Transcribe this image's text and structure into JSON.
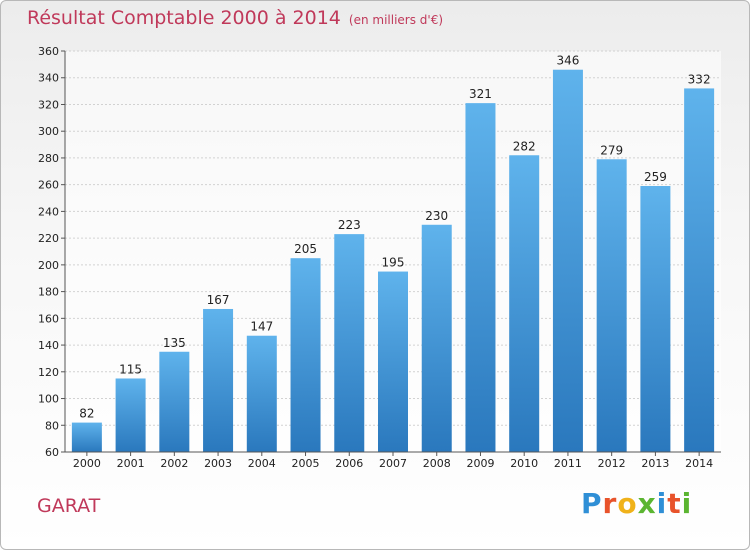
{
  "header": {
    "title": "Résultat Comptable 2000 à 2014",
    "subtitle": "(en milliers d'€)"
  },
  "footer": {
    "commune": "GARAT",
    "logo_letters": [
      "P",
      "r",
      "o",
      "x",
      "i",
      "t",
      "i"
    ],
    "logo_colors": [
      "#2f8fd6",
      "#e8532b",
      "#f0b21a",
      "#5bb531",
      "#2f8fd6",
      "#e8532b",
      "#5bb531"
    ]
  },
  "colors": {
    "bar_top": "#5fb3ec",
    "bar_bottom": "#2a78bd",
    "title": "#c0395a"
  },
  "chart_data": {
    "type": "bar",
    "title": "Résultat Comptable 2000 à 2014",
    "subtitle": "(en milliers d'€)",
    "categories": [
      "2000",
      "2001",
      "2002",
      "2003",
      "2004",
      "2005",
      "2006",
      "2007",
      "2008",
      "2009",
      "2010",
      "2011",
      "2012",
      "2013",
      "2014"
    ],
    "values": [
      82,
      115,
      135,
      167,
      147,
      205,
      223,
      195,
      230,
      321,
      282,
      346,
      279,
      259,
      332
    ],
    "ylim": [
      60,
      360
    ],
    "yticks": [
      60,
      80,
      100,
      120,
      140,
      160,
      180,
      200,
      220,
      240,
      260,
      280,
      300,
      320,
      340,
      360
    ],
    "grid": true,
    "xlabel": "",
    "ylabel": ""
  }
}
